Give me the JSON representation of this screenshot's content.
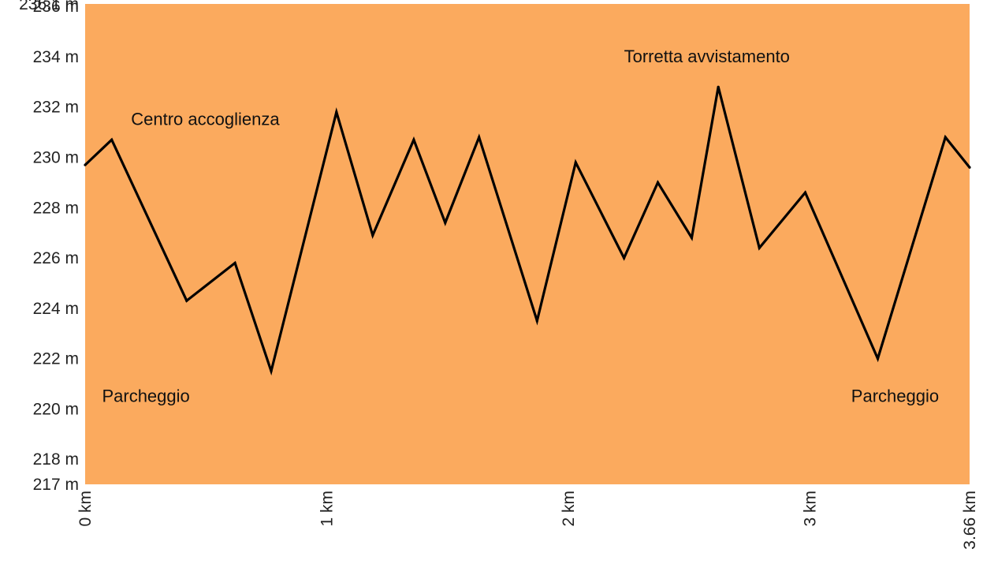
{
  "chart_data": {
    "type": "line",
    "title": "",
    "xlabel": "",
    "ylabel": "",
    "xlim": [
      0,
      3.66
    ],
    "ylim": [
      217,
      236.1
    ],
    "grid": false,
    "legend": "none",
    "colors": {
      "plot_background": "#FBAA5E",
      "line": "#000000"
    },
    "y_ticks": [
      {
        "value": 236.1,
        "label": "236.1 m"
      },
      {
        "value": 236,
        "label": "236 m"
      },
      {
        "value": 234,
        "label": "234 m"
      },
      {
        "value": 232,
        "label": "232 m"
      },
      {
        "value": 230,
        "label": "230 m"
      },
      {
        "value": 228,
        "label": "228 m"
      },
      {
        "value": 226,
        "label": "226 m"
      },
      {
        "value": 224,
        "label": "224 m"
      },
      {
        "value": 222,
        "label": "222 m"
      },
      {
        "value": 220,
        "label": "220 m"
      },
      {
        "value": 218,
        "label": "218 m"
      },
      {
        "value": 217,
        "label": "217 m"
      }
    ],
    "x_ticks": [
      {
        "value": 0,
        "label": "0 km"
      },
      {
        "value": 1,
        "label": "1 km"
      },
      {
        "value": 2,
        "label": "2 km"
      },
      {
        "value": 3,
        "label": "3 km"
      },
      {
        "value": 3.66,
        "label": "3.66 km"
      }
    ],
    "series": [
      {
        "x": [
          0,
          0.11,
          0.42,
          0.62,
          0.77,
          1.04,
          1.19,
          1.36,
          1.49,
          1.63,
          1.87,
          2.03,
          2.23,
          2.37,
          2.51,
          2.62,
          2.79,
          2.98,
          3.28,
          3.56,
          3.66
        ],
        "y": [
          229.7,
          230.7,
          224.3,
          225.8,
          221.5,
          231.8,
          226.9,
          230.7,
          227.4,
          230.8,
          223.5,
          229.8,
          226.0,
          229.0,
          226.8,
          232.8,
          226.4,
          228.6,
          222.0,
          230.8,
          229.6
        ]
      }
    ],
    "annotations": [
      {
        "text": "Centro accoglienza",
        "x": 0.19,
        "y": 231.5
      },
      {
        "text": "Torretta avvistamento",
        "x": 2.23,
        "y": 234.0
      },
      {
        "text": "Parcheggio",
        "x": 0.07,
        "y": 220.5
      },
      {
        "text": "Parcheggio",
        "x": 3.17,
        "y": 220.5
      }
    ]
  }
}
